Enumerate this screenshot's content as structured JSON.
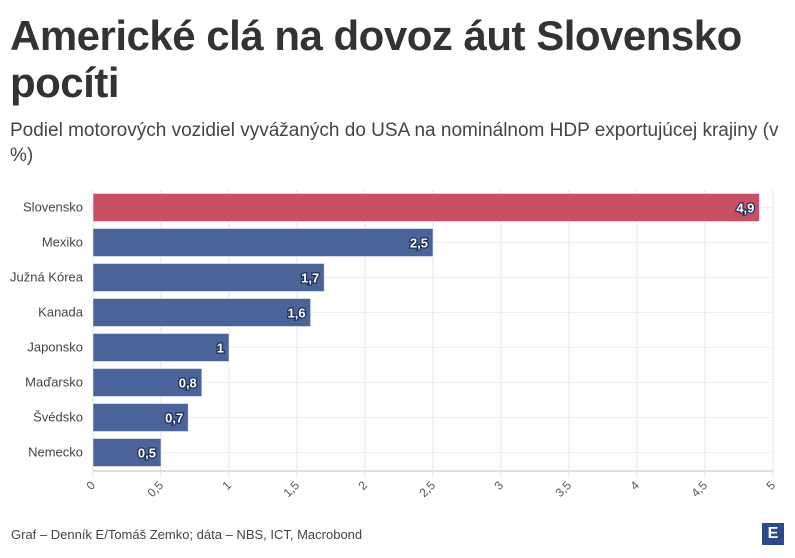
{
  "title": "Americké clá na dovoz áut Slovensko pocíti",
  "subtitle": "Podiel motorových vozidiel vyvážaných do USA na nominálnom HDP exportujúcej krajiny (v %)",
  "footer": "Graf – Denník E/Tomáš Zemko; dáta – NBS, ICT, Macrobond",
  "logo_text": "E",
  "colors": {
    "highlight": "#c85064",
    "bar": "#4a6399",
    "grid": "#e6e6e6"
  },
  "chart_data": {
    "type": "bar",
    "orientation": "horizontal",
    "categories": [
      "Slovensko",
      "Mexiko",
      "Južná Kórea",
      "Kanada",
      "Japonsko",
      "Maďarsko",
      "Švédsko",
      "Nemecko"
    ],
    "values": [
      4.9,
      2.5,
      1.7,
      1.6,
      1,
      0.8,
      0.7,
      0.5
    ],
    "data_labels": [
      "4,9",
      "2,5",
      "1,7",
      "1,6",
      "1",
      "0,8",
      "0,7",
      "0,5"
    ],
    "highlight_category": "Slovensko",
    "xlim": [
      0,
      5
    ],
    "x_ticks": [
      "0",
      "0,5",
      "1",
      "1,5",
      "2",
      "2,5",
      "3",
      "3,5",
      "4",
      "4,5",
      "5"
    ],
    "grid": true,
    "xlabel": "",
    "ylabel": ""
  }
}
